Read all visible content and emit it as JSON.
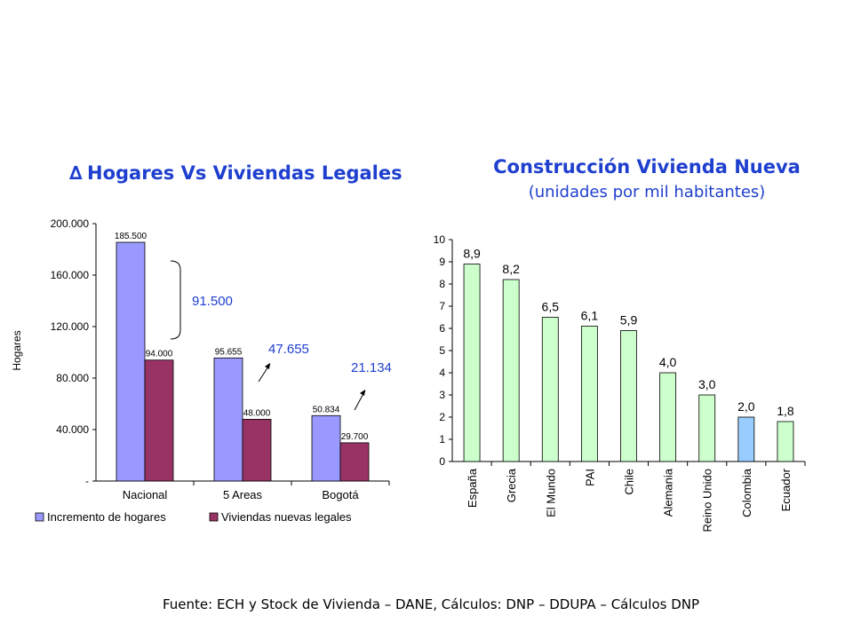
{
  "chart_data": [
    {
      "type": "bar",
      "title": "Hogares Vs Viviendas Legales",
      "title_symbol": "∆",
      "ylabel": "Hogares",
      "ylim": [
        0,
        200000
      ],
      "yticks": [
        "-",
        "40.000",
        "80.000",
        "120.000",
        "160.000",
        "200.000"
      ],
      "categories": [
        "Nacional",
        "5 Areas",
        "Bogotá"
      ],
      "series": [
        {
          "name": "Incremento de hogares",
          "color": "#9999ff",
          "values": [
            185500,
            95655,
            50834
          ],
          "labels": [
            "185.500",
            "95.655",
            "50.834"
          ]
        },
        {
          "name": "Viviendas nuevas legales",
          "color": "#993366",
          "values": [
            94000,
            48000,
            29700
          ],
          "labels": [
            "94.000",
            "48.000",
            "29.700"
          ]
        }
      ],
      "annotations": [
        "91.500",
        "47.655",
        "21.134"
      ],
      "legend": "bottom",
      "grid": false
    },
    {
      "type": "bar",
      "title": "Construcción Vivienda Nueva",
      "subtitle": "(unidades por mil habitantes)",
      "ylim": [
        0,
        10
      ],
      "yticks": [
        "0",
        "1",
        "2",
        "3",
        "4",
        "5",
        "6",
        "7",
        "8",
        "9",
        "10"
      ],
      "categories": [
        "España",
        "Grecia",
        "El Mundo",
        "PAI",
        "Chile",
        "Alemania",
        "Reino Unido",
        "Colombia",
        "Ecuador"
      ],
      "values": [
        8.9,
        8.2,
        6.5,
        6.1,
        5.9,
        4.0,
        3.0,
        2.0,
        1.8
      ],
      "labels": [
        "8,9",
        "8,2",
        "6,5",
        "6,1",
        "5,9",
        "4,0",
        "3,0",
        "2,0",
        "1,8"
      ],
      "colors": [
        "#ccffcc",
        "#ccffcc",
        "#ccffcc",
        "#ccffcc",
        "#ccffcc",
        "#ccffcc",
        "#ccffcc",
        "#99ccff",
        "#ccffcc"
      ],
      "grid": false
    }
  ],
  "source_note": "Fuente: ECH  y Stock de Vivienda – DANE, Cálculos: DNP – DDUPA – Cálculos DNP"
}
